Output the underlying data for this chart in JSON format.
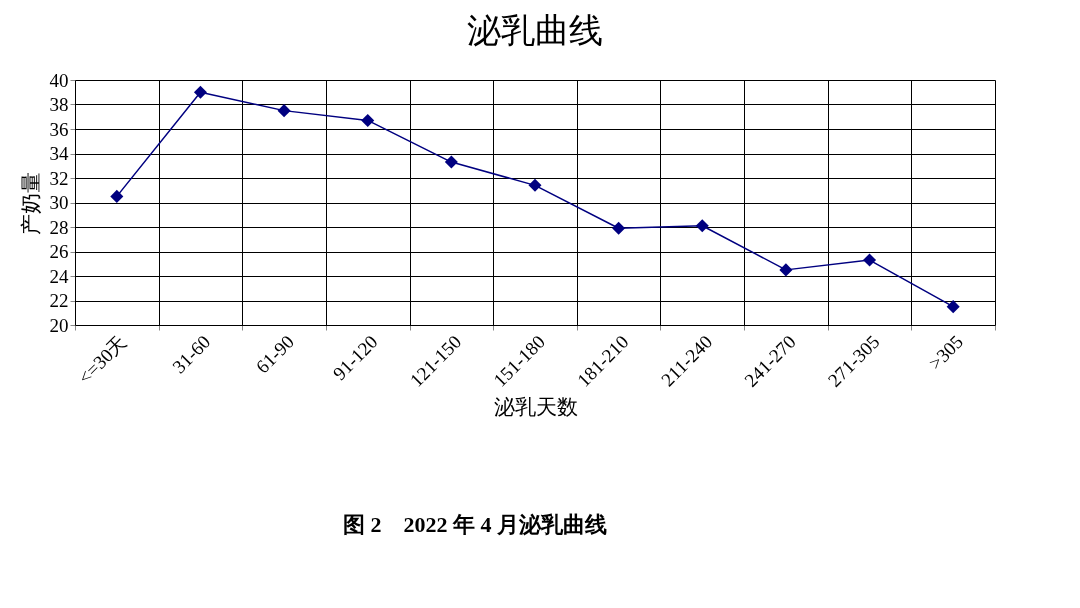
{
  "chart_data": {
    "type": "line",
    "title": "泌乳曲线",
    "xlabel": "泌乳天数",
    "ylabel": "产奶量",
    "categories": [
      "<=30天",
      "31-60",
      "61-90",
      "91-120",
      "121-150",
      "151-180",
      "181-210",
      "211-240",
      "241-270",
      "271-305",
      ">305"
    ],
    "series": [
      {
        "color": "#000080",
        "values": [
          30.5,
          39.0,
          37.5,
          36.7,
          33.3,
          31.4,
          27.9,
          28.1,
          24.5,
          25.3,
          21.5
        ]
      }
    ],
    "ylim": [
      20,
      40
    ],
    "yticks": [
      20,
      22,
      24,
      26,
      28,
      30,
      32,
      34,
      36,
      38,
      40
    ],
    "grid": true,
    "marker": "diamond",
    "line_style": "solid",
    "annotations": [
      "图 2　2022 年 4 月泌乳曲线"
    ]
  }
}
